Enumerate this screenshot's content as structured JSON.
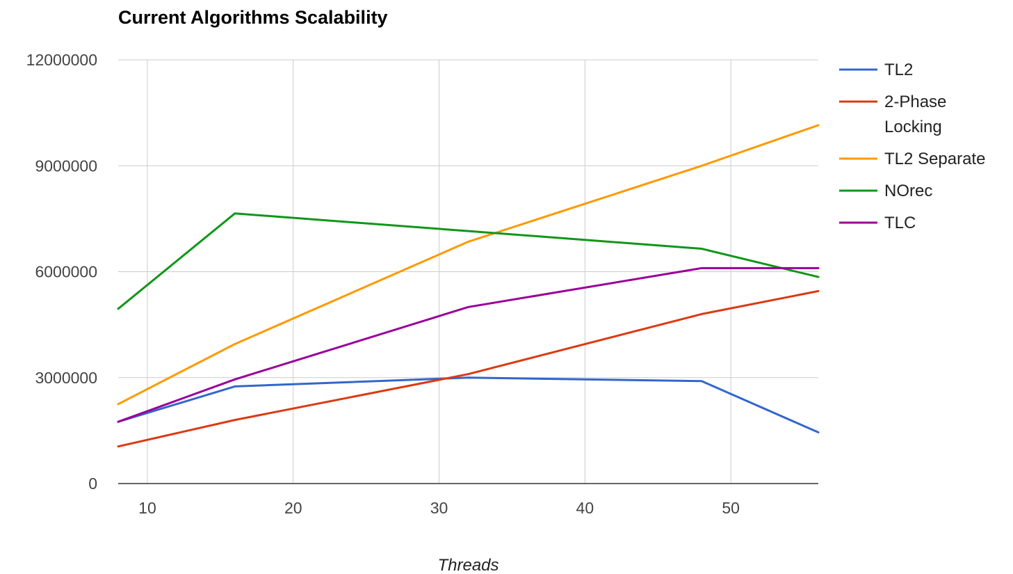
{
  "chart_data": {
    "type": "line",
    "title": "Current Algorithms Scalability",
    "xlabel": "Threads",
    "ylabel": "",
    "xlim": [
      8,
      56
    ],
    "ylim": [
      0,
      12000000
    ],
    "x_ticks": [
      10,
      20,
      30,
      40,
      50
    ],
    "y_ticks": [
      0,
      3000000,
      6000000,
      9000000,
      12000000
    ],
    "x_tick_labels": [
      "10",
      "20",
      "30",
      "40",
      "50"
    ],
    "y_tick_labels": [
      "0",
      "3000000",
      "6000000",
      "9000000",
      "12000000"
    ],
    "grid": true,
    "legend_position": "right",
    "x": [
      8,
      16,
      32,
      48,
      56
    ],
    "series": [
      {
        "name": "TL2",
        "label_lines": [
          "TL2"
        ],
        "color": "#3366cc",
        "values": [
          1750000,
          2750000,
          3000000,
          2900000,
          1450000
        ]
      },
      {
        "name": "2-Phase Locking",
        "label_lines": [
          "2-Phase",
          "Locking"
        ],
        "color": "#dc3912",
        "values": [
          1050000,
          1800000,
          3100000,
          4800000,
          5450000
        ]
      },
      {
        "name": "TL2 Separate",
        "label_lines": [
          "TL2 Separate"
        ],
        "color": "#ff9900",
        "values": [
          2250000,
          3950000,
          6850000,
          9000000,
          10150000
        ]
      },
      {
        "name": "NOrec",
        "label_lines": [
          "NOrec"
        ],
        "color": "#109618",
        "values": [
          4950000,
          7650000,
          7150000,
          6650000,
          5850000
        ]
      },
      {
        "name": "TLC",
        "label_lines": [
          "TLC"
        ],
        "color": "#990099",
        "values": [
          1750000,
          2950000,
          5000000,
          6100000,
          6100000
        ]
      }
    ]
  }
}
